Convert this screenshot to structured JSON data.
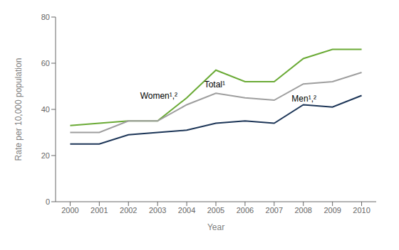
{
  "chart_data": {
    "type": "line",
    "x": [
      2000,
      2001,
      2002,
      2003,
      2004,
      2005,
      2006,
      2007,
      2008,
      2009,
      2010
    ],
    "series": [
      {
        "color": "#6aaa35",
        "values": [
          33,
          34,
          35,
          35,
          45,
          57,
          52,
          52,
          62,
          66,
          66
        ]
      },
      {
        "color": "#9e9e9e",
        "values": [
          30,
          30,
          35,
          35,
          42,
          47,
          45,
          44,
          51,
          52,
          56
        ]
      },
      {
        "color": "#1c3557",
        "values": [
          25,
          25,
          29,
          30,
          31,
          34,
          35,
          34,
          42,
          41,
          46
        ]
      }
    ],
    "x_label": "Year",
    "y_label": "Rate per 10,000 population",
    "xlim": [
      1999.5,
      2010.5
    ],
    "xticks": [
      2000,
      2001,
      2002,
      2003,
      2004,
      2005,
      2006,
      2007,
      2008,
      2009,
      2010
    ],
    "ylim": [
      0,
      80
    ],
    "yticks": [
      0,
      20,
      40,
      60,
      80
    ],
    "grid": false,
    "annotations": [
      {
        "text": "Women¹,²",
        "x": 2002.4,
        "y": 44.5
      },
      {
        "text": "Total¹",
        "x": 2004.6,
        "y": 49.5
      },
      {
        "text": "Men¹,²",
        "x": 2007.6,
        "y": 43.5
      }
    ]
  }
}
